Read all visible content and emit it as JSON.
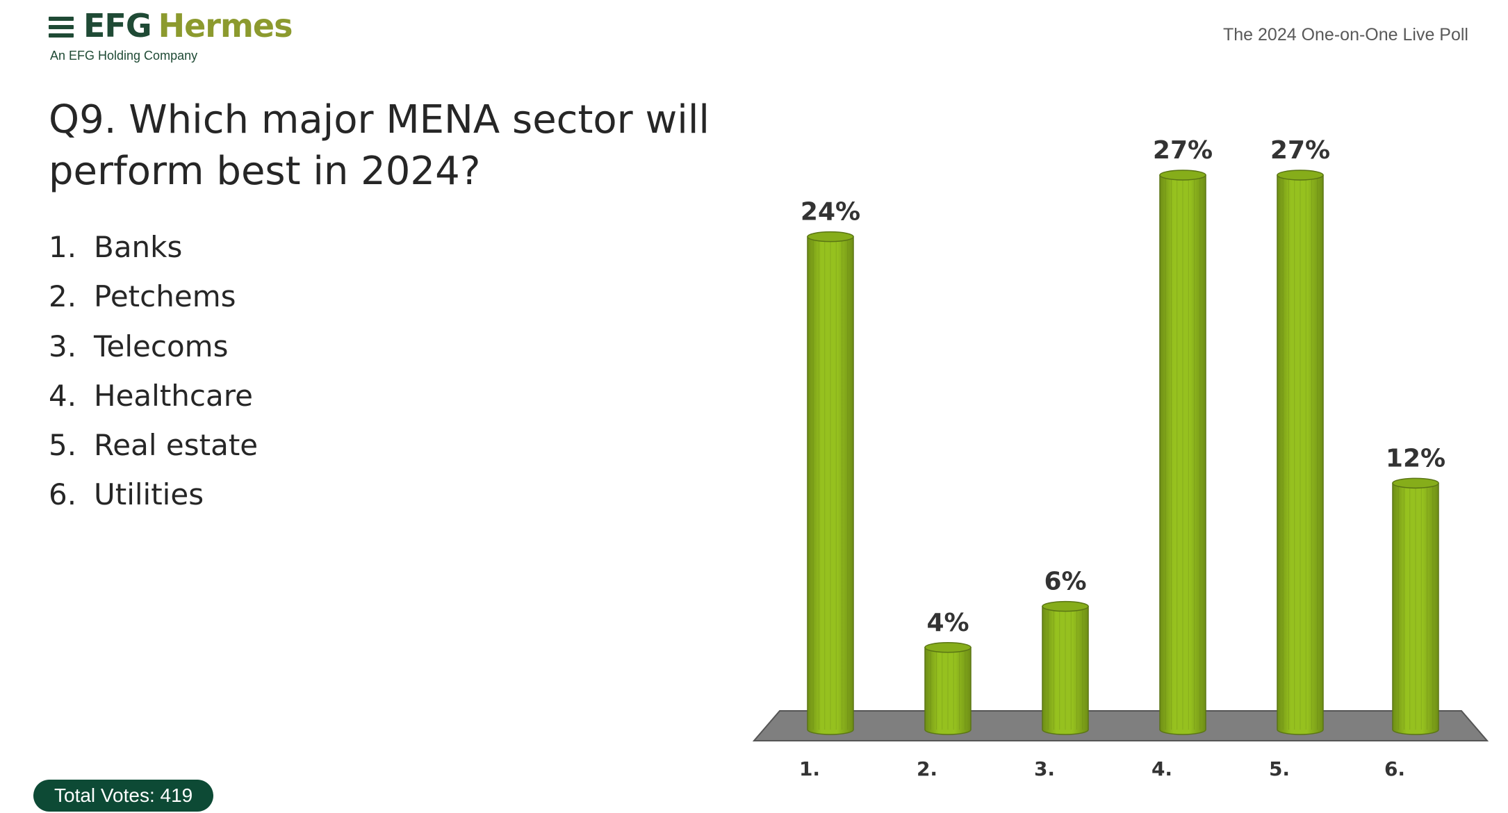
{
  "header": {
    "brand_primary": "EFG",
    "brand_secondary": "Hermes",
    "brand_tagline": "An EFG Holding Company",
    "poll_name": "The 2024 One-on-One Live Poll"
  },
  "question": "Q9. Which major MENA sector will perform best in 2024?",
  "options": [
    {
      "num": "1.",
      "label": "Banks"
    },
    {
      "num": "2.",
      "label": "Petchems"
    },
    {
      "num": "3.",
      "label": "Telecoms"
    },
    {
      "num": "4.",
      "label": "Healthcare"
    },
    {
      "num": "5.",
      "label": "Real estate"
    },
    {
      "num": "6.",
      "label": "Utilities"
    }
  ],
  "footer": {
    "total_votes": "Total Votes: 419"
  },
  "colors": {
    "bar": "#96c11f",
    "bar_dark": "#6f8f16",
    "floor": "#7f7f7f",
    "brand_green": "#1f4a35",
    "brand_olive": "#8c9a2e"
  },
  "chart_data": {
    "type": "bar",
    "categories": [
      "1.",
      "2.",
      "3.",
      "4.",
      "5.",
      "6."
    ],
    "values": [
      24,
      4,
      6,
      27,
      27,
      12
    ],
    "data_labels": [
      "24%",
      "4%",
      "6%",
      "27%",
      "27%",
      "12%"
    ],
    "unit": "%",
    "ylim": [
      0,
      27
    ],
    "grid": false,
    "legend": "none",
    "style": "3d-cylinder"
  }
}
